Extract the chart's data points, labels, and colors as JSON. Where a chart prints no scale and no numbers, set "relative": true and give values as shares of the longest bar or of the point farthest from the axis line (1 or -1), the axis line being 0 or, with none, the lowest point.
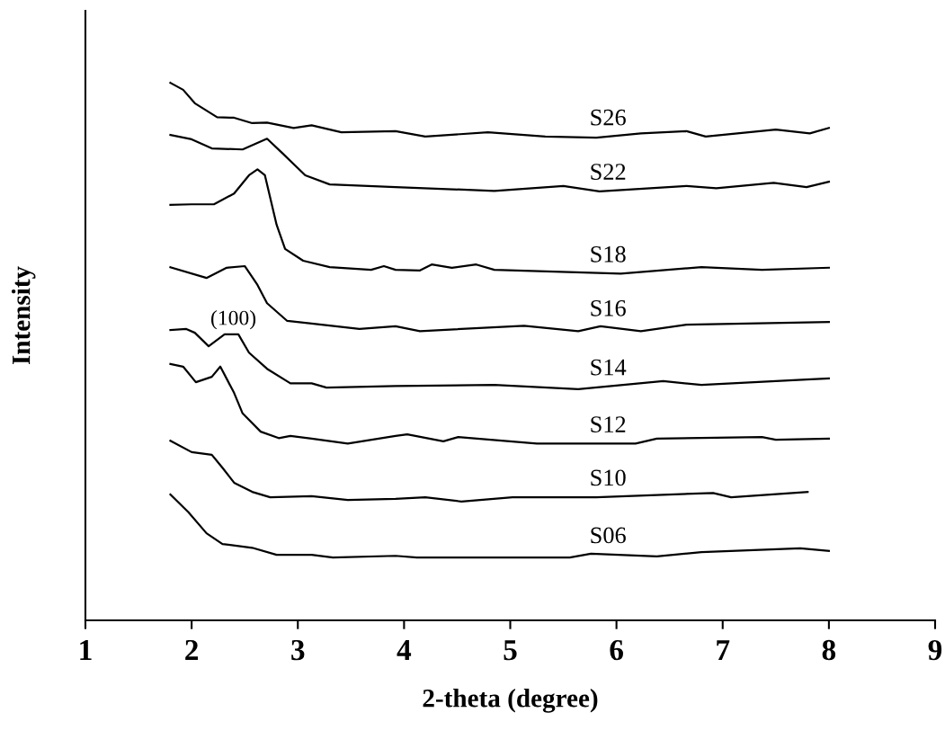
{
  "chart_data": {
    "type": "line",
    "relative": true,
    "xlabel": "2-theta (degree)",
    "ylabel": "Intensity",
    "xlim": [
      1,
      9
    ],
    "xticks": [
      1,
      2,
      3,
      4,
      5,
      6,
      7,
      8,
      9
    ],
    "grid": false,
    "legend": false,
    "marker": "none",
    "line_style": "solid",
    "annotations": [
      {
        "text": "(100)",
        "x": 2.44,
        "y": 0.532
      }
    ],
    "series": [
      {
        "name": "S26",
        "color": "#000000",
        "x": [
          1.8,
          1.92,
          2.03,
          2.24,
          2.4,
          2.57,
          2.71,
          2.96,
          3.13,
          3.41,
          3.92,
          4.2,
          4.79,
          5.33,
          5.81,
          6.23,
          6.66,
          6.84,
          7.5,
          7.82,
          8.0
        ],
        "values": [
          1.0,
          0.987,
          0.962,
          0.936,
          0.935,
          0.925,
          0.926,
          0.916,
          0.921,
          0.908,
          0.91,
          0.9,
          0.908,
          0.9,
          0.898,
          0.906,
          0.91,
          0.9,
          0.913,
          0.906,
          0.916
        ]
      },
      {
        "name": "S22",
        "color": "#000000",
        "x": [
          1.8,
          2.0,
          2.19,
          2.48,
          2.71,
          2.85,
          3.07,
          3.3,
          3.92,
          4.85,
          5.5,
          5.84,
          6.66,
          6.94,
          7.48,
          7.79,
          8.0
        ],
        "values": [
          0.903,
          0.895,
          0.878,
          0.876,
          0.896,
          0.87,
          0.828,
          0.811,
          0.806,
          0.799,
          0.808,
          0.798,
          0.808,
          0.804,
          0.814,
          0.806,
          0.816
        ]
      },
      {
        "name": "S18",
        "color": "#000000",
        "x": [
          1.8,
          2.0,
          2.21,
          2.4,
          2.54,
          2.62,
          2.69,
          2.8,
          2.88,
          3.05,
          3.3,
          3.69,
          3.81,
          3.92,
          4.15,
          4.26,
          4.45,
          4.68,
          4.85,
          6.04,
          6.8,
          7.37,
          8.0
        ],
        "values": [
          0.773,
          0.774,
          0.774,
          0.794,
          0.828,
          0.839,
          0.828,
          0.736,
          0.691,
          0.669,
          0.657,
          0.652,
          0.659,
          0.652,
          0.651,
          0.662,
          0.656,
          0.662,
          0.652,
          0.645,
          0.657,
          0.652,
          0.656
        ]
      },
      {
        "name": "S16",
        "color": "#000000",
        "x": [
          1.8,
          2.14,
          2.33,
          2.5,
          2.62,
          2.71,
          2.9,
          3.13,
          3.58,
          3.92,
          4.15,
          5.13,
          5.64,
          5.85,
          6.23,
          6.66,
          8.0
        ],
        "values": [
          0.657,
          0.637,
          0.656,
          0.659,
          0.624,
          0.59,
          0.557,
          0.552,
          0.542,
          0.547,
          0.538,
          0.548,
          0.538,
          0.547,
          0.538,
          0.55,
          0.555
        ]
      },
      {
        "name": "S14",
        "color": "#000000",
        "x": [
          1.8,
          1.95,
          2.03,
          2.16,
          2.31,
          2.44,
          2.54,
          2.71,
          2.93,
          3.13,
          3.27,
          3.92,
          4.85,
          5.64,
          6.44,
          6.8,
          7.79,
          8.0
        ],
        "values": [
          0.54,
          0.542,
          0.535,
          0.51,
          0.532,
          0.532,
          0.498,
          0.468,
          0.441,
          0.441,
          0.433,
          0.436,
          0.438,
          0.43,
          0.445,
          0.438,
          0.448,
          0.45
        ]
      },
      {
        "name": "S12",
        "color": "#000000",
        "x": [
          1.8,
          1.92,
          2.04,
          2.19,
          2.27,
          2.4,
          2.48,
          2.65,
          2.82,
          2.93,
          3.13,
          3.47,
          3.92,
          4.03,
          4.37,
          4.51,
          5.25,
          6.18,
          6.38,
          7.37,
          7.5,
          8.0
        ],
        "values": [
          0.477,
          0.472,
          0.443,
          0.453,
          0.472,
          0.423,
          0.385,
          0.351,
          0.339,
          0.343,
          0.338,
          0.329,
          0.343,
          0.346,
          0.333,
          0.341,
          0.329,
          0.329,
          0.338,
          0.341,
          0.336,
          0.338
        ]
      },
      {
        "name": "S10",
        "color": "#000000",
        "x": [
          1.8,
          2.0,
          2.19,
          2.29,
          2.4,
          2.57,
          2.74,
          3.13,
          3.47,
          3.92,
          4.2,
          4.54,
          5.02,
          5.81,
          6.91,
          7.08,
          7.8
        ],
        "values": [
          0.334,
          0.313,
          0.308,
          0.284,
          0.256,
          0.239,
          0.229,
          0.231,
          0.224,
          0.226,
          0.229,
          0.221,
          0.229,
          0.229,
          0.237,
          0.229,
          0.239
        ]
      },
      {
        "name": "S06",
        "color": "#000000",
        "x": [
          1.8,
          1.97,
          2.14,
          2.29,
          2.57,
          2.8,
          3.13,
          3.33,
          3.92,
          4.12,
          5.56,
          5.76,
          6.38,
          6.8,
          7.73,
          8.0
        ],
        "values": [
          0.234,
          0.201,
          0.162,
          0.142,
          0.135,
          0.122,
          0.122,
          0.117,
          0.12,
          0.117,
          0.117,
          0.124,
          0.119,
          0.127,
          0.134,
          0.129
        ]
      }
    ]
  }
}
